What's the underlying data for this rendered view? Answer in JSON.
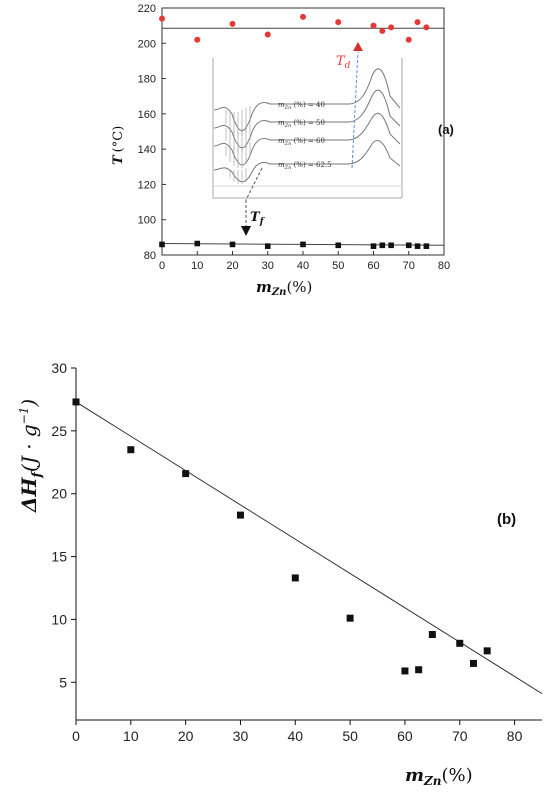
{
  "chart_data": [
    {
      "panel_label": "(a)",
      "type": "scatter",
      "xlabel_main": "m",
      "xlabel_sub": "Zn",
      "xlabel_unit": "(%)",
      "ylabel_main": "T",
      "ylabel_unit": "(°C)",
      "xlim": [
        0,
        80
      ],
      "ylim": [
        80,
        220
      ],
      "x_ticks": [
        "0",
        "10",
        "20",
        "30",
        "40",
        "50",
        "60",
        "70",
        "80"
      ],
      "y_ticks": [
        "80",
        "100",
        "120",
        "140",
        "160",
        "180",
        "200",
        "220"
      ],
      "series": [
        {
          "name": "T_d",
          "color": "#e53935",
          "marker": "circle",
          "x": [
            0,
            10,
            20,
            30,
            40,
            50,
            60,
            62.5,
            65,
            70,
            72.5,
            75
          ],
          "y": [
            214,
            202,
            211,
            205,
            215,
            212,
            210,
            207,
            209,
            202,
            212,
            209
          ],
          "fit_line": [
            208.5,
            208.5
          ]
        },
        {
          "name": "T_f",
          "color": "#111111",
          "marker": "square",
          "x": [
            0,
            10,
            20,
            30,
            40,
            50,
            60,
            62.5,
            65,
            70,
            72.5,
            75
          ],
          "y": [
            86,
            86.5,
            86,
            85,
            86,
            85.5,
            85,
            85.5,
            85.5,
            85.5,
            85,
            85
          ],
          "fit_line": [
            86.5,
            85.5
          ]
        }
      ],
      "annotations": {
        "td_main": "T",
        "td_sub": "d",
        "tf_main": "T",
        "tf_sub": "f"
      },
      "inset": {
        "curve_labels": [
          {
            "main": "m",
            "sub": "Zn",
            "text": " (%) = 40"
          },
          {
            "main": "m",
            "sub": "Zn",
            "text": " (%) = 50"
          },
          {
            "main": "m",
            "sub": "Zn",
            "text": " (%) = 60"
          },
          {
            "main": "m",
            "sub": "Zn",
            "text": " (%) = 62.5"
          }
        ]
      }
    },
    {
      "panel_label": "(b)",
      "type": "scatter",
      "xlabel_main": "m",
      "xlabel_sub": "Zn",
      "xlabel_unit": "(%)",
      "ylabel_delta": "ΔH",
      "ylabel_sub": "f",
      "ylabel_unit_open": "(J · g",
      "ylabel_sup": "−1",
      "ylabel_unit_close": ")",
      "xlim": [
        0,
        85
      ],
      "ylim": [
        2,
        30
      ],
      "x_ticks": [
        "0",
        "10",
        "20",
        "30",
        "40",
        "50",
        "60",
        "70",
        "80"
      ],
      "y_ticks": [
        "5",
        "10",
        "15",
        "20",
        "25",
        "30"
      ],
      "series": [
        {
          "name": "ΔH_f",
          "color": "#111111",
          "marker": "square",
          "x": [
            0,
            10,
            20,
            30,
            40,
            50,
            60,
            62.5,
            65,
            70,
            72.5,
            75
          ],
          "y": [
            27.3,
            23.5,
            21.6,
            18.3,
            13.3,
            10.1,
            5.9,
            6.0,
            8.8,
            8.1,
            6.5,
            7.5
          ]
        }
      ],
      "fit_line": {
        "x": [
          0,
          85
        ],
        "y": [
          27.3,
          4.1
        ]
      }
    }
  ]
}
